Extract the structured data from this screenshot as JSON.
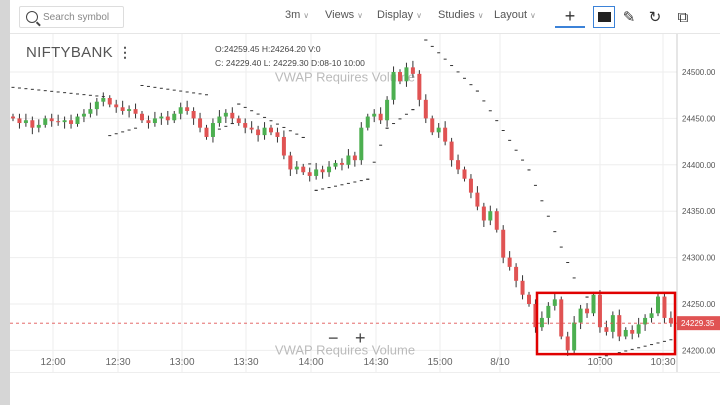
{
  "toolbar": {
    "search_placeholder": "Search symbol",
    "interval": "3m",
    "views": "Views",
    "display": "Display",
    "studies": "Studies",
    "layout": "Layout",
    "icons": [
      "crosshair-icon",
      "comment-icon",
      "pencil-icon",
      "refresh-icon",
      "popout-icon"
    ]
  },
  "legend": {
    "symbol": "NIFTYBANK",
    "o": "O:24259.45",
    "h": "H:24264.20",
    "v": "V:0",
    "c": "C: 24229.40",
    "l": "L: 24229.30",
    "d": "D:08-10 10:00"
  },
  "watermark": "VWAP Requires Volume",
  "zoom": {
    "minus": "−",
    "plus": "+"
  },
  "colors": {
    "up": "#4caf50",
    "down": "#e05353",
    "highlight": "#e00000",
    "price_tag": "#e05353"
  },
  "chart_data": {
    "type": "candlestick",
    "x_ticks": [
      "12:00",
      "12:30",
      "13:00",
      "13:30",
      "14:00",
      "14:30",
      "15:00",
      "8/10",
      "10:00",
      "10:30"
    ],
    "y_ticks": [
      "24500.00",
      "24450.00",
      "24400.00",
      "24350.00",
      "24300.00",
      "24250.00",
      "24200.00"
    ],
    "ylim": [
      24190,
      24535
    ],
    "last_price": "24229.35",
    "closes": [
      24450,
      24445,
      24448,
      24440,
      24443,
      24450,
      24447,
      24446,
      24448,
      24444,
      24452,
      24455,
      24460,
      24468,
      24472,
      24465,
      24462,
      24458,
      24460,
      24455,
      24448,
      24445,
      24450,
      24452,
      24448,
      24455,
      24462,
      24458,
      24450,
      24440,
      24430,
      24445,
      24452,
      24456,
      24450,
      24445,
      24440,
      24438,
      24432,
      24440,
      24435,
      24430,
      24410,
      24395,
      24398,
      24392,
      24388,
      24395,
      24392,
      24398,
      24402,
      24400,
      24410,
      24405,
      24440,
      24452,
      24455,
      24448,
      24470,
      24500,
      24490,
      24505,
      24498,
      24470,
      24450,
      24435,
      24440,
      24425,
      24405,
      24395,
      24385,
      24370,
      24355,
      24340,
      24350,
      24330,
      24300,
      24290,
      24275,
      24260,
      24250,
      24225,
      24235,
      24248,
      24255,
      24215,
      24200,
      24230,
      24245,
      24240,
      24260,
      24225,
      24220,
      24238,
      24215,
      24222,
      24218,
      24228,
      24235,
      24240,
      24258,
      24235,
      24229.35
    ],
    "sar": [
      [
        0,
        24484
      ],
      [
        14,
        24474
      ],
      [
        15,
        24432
      ],
      [
        19,
        24440
      ],
      [
        20,
        24486
      ],
      [
        30,
        24476
      ],
      [
        31,
        24436
      ],
      [
        34,
        24445
      ],
      [
        35,
        24466
      ],
      [
        45,
        24430
      ],
      [
        47,
        24373
      ],
      [
        55,
        24385
      ],
      [
        58,
        24440
      ],
      [
        62,
        24460
      ],
      [
        64,
        24535
      ],
      [
        72,
        24480
      ],
      [
        80,
        24395
      ],
      [
        88,
        24262
      ],
      [
        89,
        24258
      ],
      [
        90,
        24248
      ],
      [
        91,
        24193
      ],
      [
        102,
        24212
      ]
    ]
  }
}
